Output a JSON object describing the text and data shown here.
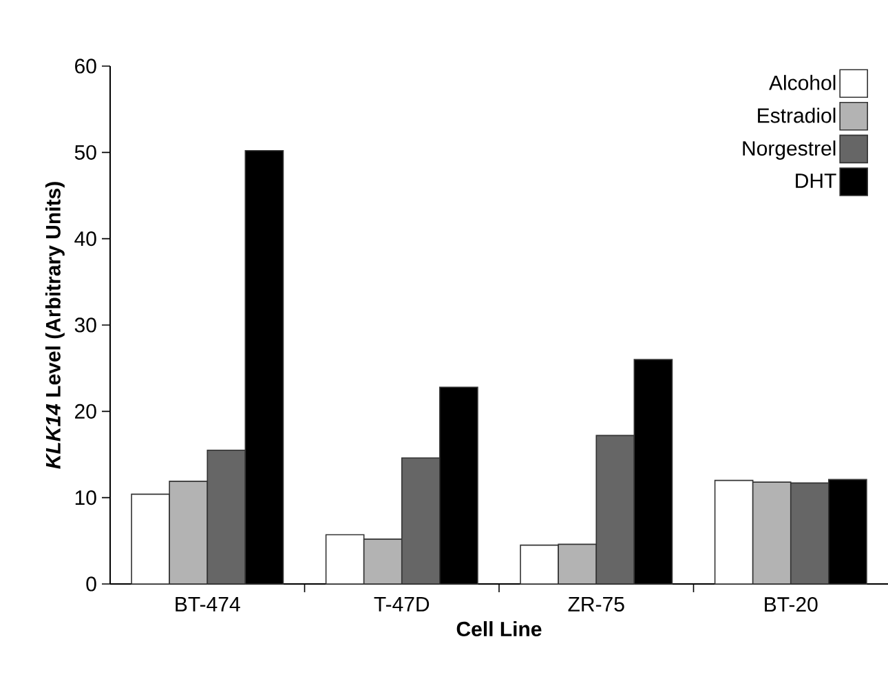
{
  "chart_data": {
    "type": "bar",
    "xlabel": "Cell Line",
    "ylabel": "*KLK14* Level (Arbitrary Units)",
    "categories": [
      "BT-474",
      "T-47D",
      "ZR-75",
      "BT-20"
    ],
    "series": [
      {
        "name": "Alcohol",
        "color": "#ffffff",
        "values": [
          10.4,
          5.7,
          4.5,
          12.0
        ]
      },
      {
        "name": "Estradiol",
        "color": "#b3b3b3",
        "values": [
          11.9,
          5.2,
          4.6,
          11.8
        ]
      },
      {
        "name": "Norgestrel",
        "color": "#666666",
        "values": [
          15.5,
          14.6,
          17.2,
          11.7
        ]
      },
      {
        "name": "DHT",
        "color": "#000000",
        "values": [
          50.2,
          22.8,
          26.0,
          12.1
        ]
      }
    ],
    "ylim": [
      0,
      60
    ],
    "yticks": [
      0,
      10,
      20,
      30,
      40,
      50,
      60
    ],
    "grid": false,
    "legend": "top right"
  }
}
